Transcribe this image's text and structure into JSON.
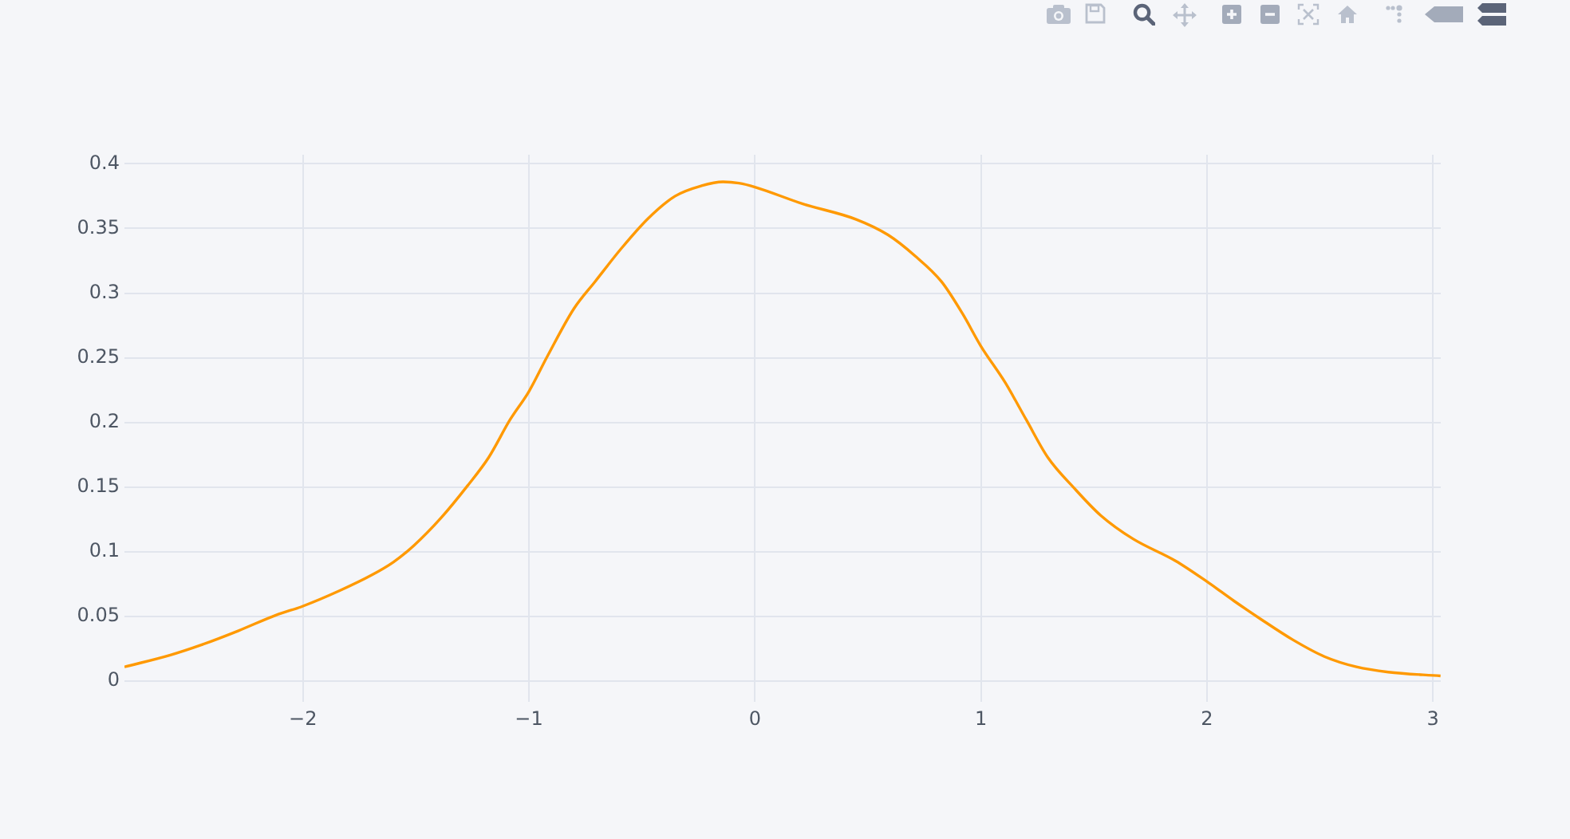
{
  "chart_data": {
    "type": "line",
    "color": "#ff9900",
    "x": [
      -2.79,
      -2.59,
      -2.45,
      -2.285,
      -2.12,
      -2.0,
      -1.837,
      -1.696,
      -1.6,
      -1.508,
      -1.39,
      -1.272,
      -1.178,
      -1.084,
      -1.0,
      -0.919,
      -0.801,
      -0.707,
      -0.589,
      -0.471,
      -0.353,
      -0.236,
      -0.141,
      -0.071,
      0,
      0.212,
      0.448,
      0.589,
      0.707,
      0.825,
      0.919,
      1.0,
      1.107,
      1.201,
      1.296,
      1.414,
      1.531,
      1.673,
      1.861,
      2.0,
      2.12,
      2.238,
      2.38,
      2.52,
      2.662,
      2.803,
      3.034
    ],
    "values": [
      0.011,
      0.02,
      0.028,
      0.039,
      0.051,
      0.058,
      0.07,
      0.082,
      0.092,
      0.105,
      0.126,
      0.151,
      0.173,
      0.202,
      0.224,
      0.251,
      0.288,
      0.309,
      0.335,
      0.358,
      0.375,
      0.383,
      0.386,
      0.385,
      0.382,
      0.369,
      0.357,
      0.345,
      0.329,
      0.309,
      0.284,
      0.259,
      0.231,
      0.202,
      0.173,
      0.149,
      0.128,
      0.11,
      0.093,
      0.077,
      0.062,
      0.048,
      0.032,
      0.019,
      0.011,
      0.007,
      0.004
    ],
    "xlim": [
      -2.79,
      3.035
    ],
    "ylim": [
      -0.016,
      0.407
    ],
    "xticks": [
      {
        "value": -2,
        "label": "−2"
      },
      {
        "value": -1,
        "label": "−1"
      },
      0,
      1,
      2,
      3
    ],
    "yticks": [
      0,
      0.05,
      0.1,
      0.15,
      0.2,
      0.25,
      0.3,
      0.35,
      0.4
    ],
    "grid": true
  }
}
